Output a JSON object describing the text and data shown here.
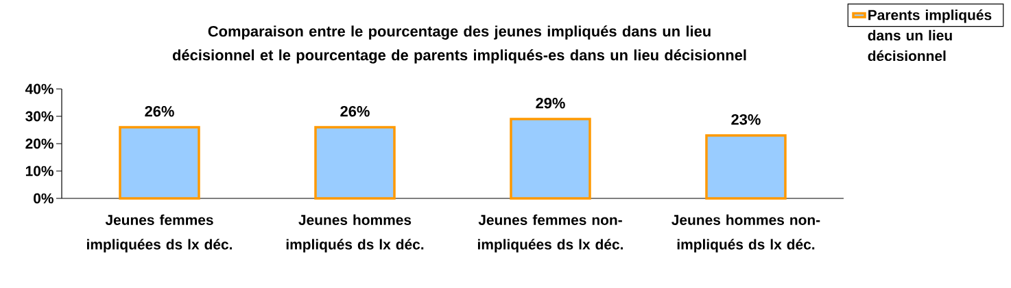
{
  "chart_data": {
    "type": "bar",
    "title": "Comparaison entre le pourcentage des jeunes impliqués dans un lieu décisionnel et le pourcentage de parents impliqués-es dans un lieu décisionnel",
    "categories": [
      "Jeunes femmes impliquées ds lx déc.",
      "Jeunes hommes impliqués ds lx déc.",
      "Jeunes femmes non- impliquées ds lx déc.",
      "Jeunes hommes non-impliqués ds lx déc."
    ],
    "series": [
      {
        "name": "Parents impliqués dans un lieu décisionnel",
        "color": "#99ccff",
        "values": [
          26,
          26,
          29,
          23
        ],
        "value_labels": [
          "26%",
          "26%",
          "29%",
          "23%"
        ]
      }
    ],
    "ylim": [
      0,
      40
    ],
    "yticks": [
      {
        "value": 0,
        "label": "0%"
      },
      {
        "value": 10,
        "label": "10%"
      },
      {
        "value": 20,
        "label": "20%"
      },
      {
        "value": 30,
        "label": "30%"
      },
      {
        "value": 40,
        "label": "40%"
      }
    ],
    "legend": "right"
  }
}
